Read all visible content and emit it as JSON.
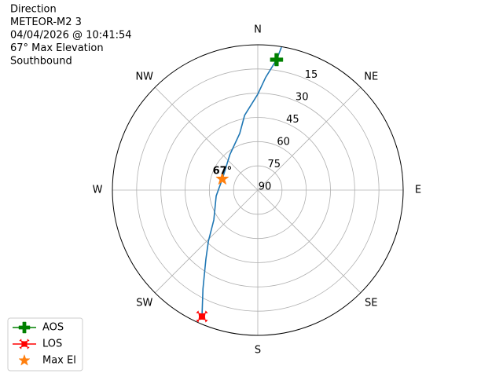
{
  "chart_data": {
    "type": "polar",
    "title_lines": [
      "Direction",
      "METEOR-M2 3",
      "04/04/2026 @ 10:41:54",
      "67° Max Elevation",
      "Southbound"
    ],
    "ylim": [
      90,
      0
    ],
    "yticks": [
      15,
      30,
      45,
      60,
      75,
      90
    ],
    "rlabel_position": 22.5,
    "xticks": [
      {
        "value": 0,
        "label": "N"
      },
      {
        "value": 45,
        "label": "NE"
      },
      {
        "value": 90,
        "label": "E"
      },
      {
        "value": 135,
        "label": "SE"
      },
      {
        "value": 180,
        "label": "S"
      },
      {
        "value": 225,
        "label": "SW"
      },
      {
        "value": 270,
        "label": "W"
      },
      {
        "value": 315,
        "label": "NW"
      }
    ],
    "grid": true,
    "legend": "lower left",
    "series": [
      {
        "color": "#1f77b4",
        "marker": "line",
        "x": [
          9.4,
          8.2,
          4,
          0,
          350,
          342.3,
          322,
          287.3,
          262,
          235.8,
          224,
          216.9,
          209,
          203.8
        ],
        "values": [
          0.3,
          8.4,
          20,
          30.6,
          43,
          53.2,
          62,
          67,
          64,
          57.1,
          46,
          36.5,
          20,
          4.4
        ]
      },
      {
        "name": "AOS",
        "color": "#008000",
        "marker": "plus",
        "x": [
          8.2
        ],
        "values": [
          8.4
        ]
      },
      {
        "name": "LOS",
        "color": "#ff0000",
        "marker": "x",
        "x": [
          203.8
        ],
        "values": [
          4.4
        ]
      },
      {
        "name": "Max El",
        "color": "#ff7f0e",
        "marker": "star",
        "x": [
          287.3
        ],
        "values": [
          67
        ],
        "value_labels": [
          "67°"
        ]
      }
    ]
  }
}
